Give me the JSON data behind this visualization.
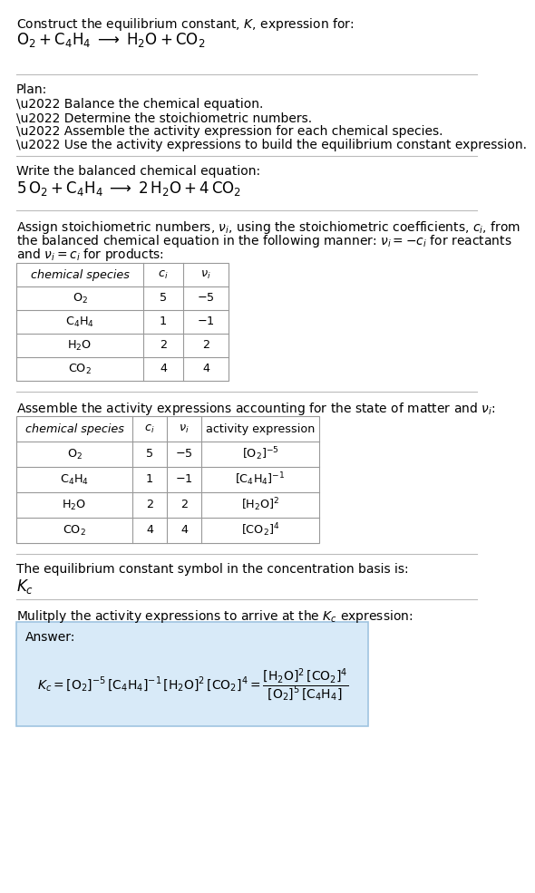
{
  "background_color": "#ffffff",
  "title_line1": "Construct the equilibrium constant, $K$, expression for:",
  "title_line2": "$\\mathrm{O_2 + C_4H_4 \\;\\longrightarrow\\; H_2O + CO_2}$",
  "plan_header": "Plan:",
  "plan_items": [
    "\\u2022 Balance the chemical equation.",
    "\\u2022 Determine the stoichiometric numbers.",
    "\\u2022 Assemble the activity expression for each chemical species.",
    "\\u2022 Use the activity expressions to build the equilibrium constant expression."
  ],
  "balanced_header": "Write the balanced chemical equation:",
  "balanced_eq": "$\\mathrm{5\\,O_2 + C_4H_4 \\;\\longrightarrow\\; 2\\,H_2O + 4\\,CO_2}$",
  "stoich_lines": [
    "Assign stoichiometric numbers, $\\nu_i$, using the stoichiometric coefficients, $c_i$, from",
    "the balanced chemical equation in the following manner: $\\nu_i = -c_i$ for reactants",
    "and $\\nu_i = c_i$ for products:"
  ],
  "table1_headers": [
    "chemical species",
    "$c_i$",
    "$\\nu_i$"
  ],
  "table1_rows": [
    [
      "$\\mathrm{O_2}$",
      "5",
      "$-5$"
    ],
    [
      "$\\mathrm{C_4H_4}$",
      "1",
      "$-1$"
    ],
    [
      "$\\mathrm{H_2O}$",
      "2",
      "2"
    ],
    [
      "$\\mathrm{CO_2}$",
      "4",
      "4"
    ]
  ],
  "assemble_header": "Assemble the activity expressions accounting for the state of matter and $\\nu_i$:",
  "table2_headers": [
    "chemical species",
    "$c_i$",
    "$\\nu_i$",
    "activity expression"
  ],
  "table2_rows": [
    [
      "$\\mathrm{O_2}$",
      "5",
      "$-5$",
      "$[\\mathrm{O_2}]^{-5}$"
    ],
    [
      "$\\mathrm{C_4H_4}$",
      "1",
      "$-1$",
      "$[\\mathrm{C_4H_4}]^{-1}$"
    ],
    [
      "$\\mathrm{H_2O}$",
      "2",
      "2",
      "$[\\mathrm{H_2O}]^{2}$"
    ],
    [
      "$\\mathrm{CO_2}$",
      "4",
      "4",
      "$[\\mathrm{CO_2}]^{4}$"
    ]
  ],
  "kc_header": "The equilibrium constant symbol in the concentration basis is:",
  "kc_symbol": "$K_c$",
  "multiply_header": "Mulitply the activity expressions to arrive at the $K_c$ expression:",
  "answer_label": "Answer:",
  "answer_eq": "$K_c = [\\mathrm{O_2}]^{-5}\\,[\\mathrm{C_4H_4}]^{-1}\\,[\\mathrm{H_2O}]^{2}\\,[\\mathrm{CO_2}]^{4} = \\dfrac{[\\mathrm{H_2O}]^{2}\\,[\\mathrm{CO_2}]^{4}}{[\\mathrm{O_2}]^{5}\\,[\\mathrm{C_4H_4}]}$",
  "answer_box_color": "#d8eaf8",
  "answer_box_edge": "#a0c4e0",
  "sep_color": "#bbbbbb",
  "table_edge_color": "#999999",
  "fs": 10.0,
  "fs_small": 9.2
}
